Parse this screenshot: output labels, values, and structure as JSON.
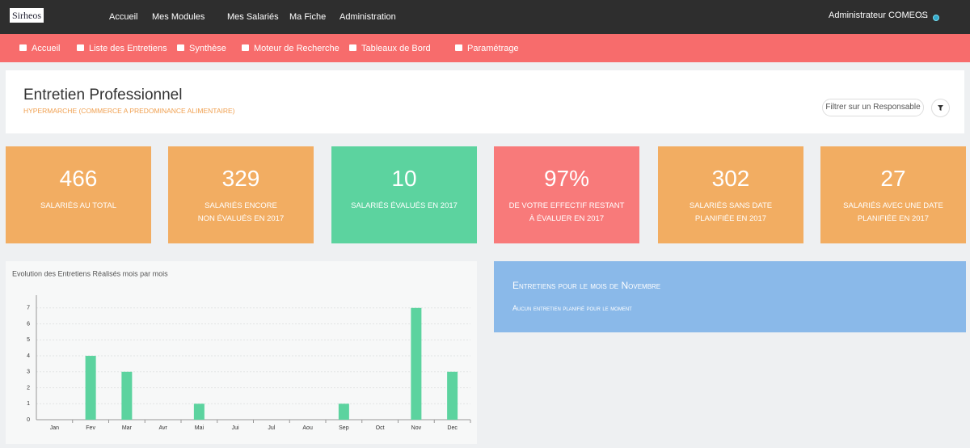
{
  "topbar": {
    "logo": "Sirheos",
    "menu": [
      "Accueil",
      "Mes Modules",
      "Mes Salariés",
      "Ma Fiche",
      "Administration"
    ],
    "user": "Administrateur COMEOS",
    "user_extra": "..."
  },
  "subnav": [
    "Accueil",
    "Liste des Entretiens",
    "Synthèse",
    "Moteur de Recherche",
    "Tableaux de Bord",
    "Paramétrage"
  ],
  "header": {
    "title": "Entretien Professionnel",
    "subtitle": "HYPERMARCHE (COMMERCE A PREDOMINANCE ALIMENTAIRE)",
    "filter": "Filtrer sur un Responsable"
  },
  "tiles": [
    {
      "value": "466",
      "lines": [
        "SALARIÉS AU TOTAL"
      ],
      "color": "#f2ad62"
    },
    {
      "value": "329",
      "lines": [
        "SALARIÉS ENCORE",
        "NON ÉVALUÉS EN 2017"
      ],
      "color": "#f2ad62"
    },
    {
      "value": "10",
      "lines": [
        "SALARIÉS ÉVALUÉS EN 2017"
      ],
      "color": "#5cd39f"
    },
    {
      "value": "97%",
      "lines": [
        "DE VOTRE EFFECTIF RESTANT",
        "À ÉVALUER EN 2017"
      ],
      "color": "#f87a7a"
    },
    {
      "value": "302",
      "lines": [
        "SALARIÉS SANS DATE",
        "PLANIFIÉE EN 2017"
      ],
      "color": "#f2ad62"
    },
    {
      "value": "27",
      "lines": [
        "SALARIÉS AVEC UNE DATE",
        "PLANIFIÉE EN 2017"
      ],
      "color": "#f2ad62"
    }
  ],
  "info": {
    "title": "Entretiens pour le mois de Novembre",
    "text": "Aucun entretien planifié pour le moment"
  },
  "chart_data": {
    "type": "bar",
    "title": "Evolution des Entretiens Réalisés mois par mois",
    "categories": [
      "Jan",
      "Fev",
      "Mar",
      "Avr",
      "Mai",
      "Jui",
      "Jul",
      "Aou",
      "Sep",
      "Oct",
      "Nov",
      "Dec"
    ],
    "values": [
      0,
      4,
      3,
      0,
      1,
      0,
      0,
      0,
      1,
      0,
      7,
      3
    ],
    "color": "#5cd39f",
    "ylim": [
      0,
      7.8
    ],
    "yticks": [
      0,
      1,
      2,
      3,
      4,
      5,
      6,
      7
    ],
    "grid": true
  }
}
